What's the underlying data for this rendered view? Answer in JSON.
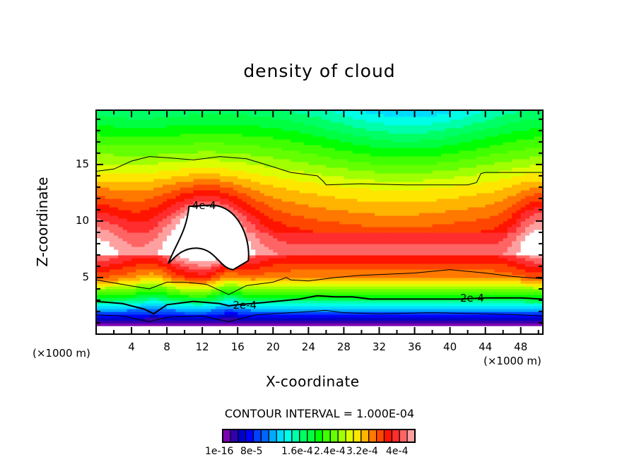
{
  "chart_data": {
    "type": "heatmap",
    "subtype": "filled-contour",
    "title": "density of cloud",
    "xlabel": "X-coordinate",
    "ylabel": "Z-coordinate",
    "x_unit_label": "(×1000 m)",
    "y_unit_label": "(×1000 m)",
    "xlim": [
      0,
      50.5
    ],
    "ylim": [
      0,
      19.8
    ],
    "x_ticks": [
      4,
      8,
      12,
      16,
      20,
      24,
      28,
      32,
      36,
      40,
      44,
      48
    ],
    "x_tick_labels": [
      "4",
      "8",
      "12",
      "16",
      "20",
      "24",
      "28",
      "32",
      "36",
      "40",
      "44",
      "48"
    ],
    "y_ticks": [
      5,
      10,
      15
    ],
    "y_tick_labels": [
      "5",
      "10",
      "15"
    ],
    "contour_interval_text": "CONTOUR INTERVAL = 1.000E-04",
    "contour_labels": [
      {
        "text": "4e-4",
        "x": 12.2,
        "z": 11.3
      },
      {
        "text": "2e-4",
        "x": 16.8,
        "z": 2.5
      },
      {
        "text": "2e-4",
        "x": 42.5,
        "z": 3.1
      }
    ],
    "colorbar": {
      "colors": [
        "#7b00b0",
        "#3000b0",
        "#0000c8",
        "#0000ff",
        "#0040ff",
        "#0064ff",
        "#00aaff",
        "#00dcff",
        "#00ffe6",
        "#00ffaa",
        "#00ff64",
        "#00ff40",
        "#00ff00",
        "#40ff00",
        "#64ff00",
        "#a0ff00",
        "#dcff00",
        "#ffe600",
        "#ffb400",
        "#ff7800",
        "#ff4600",
        "#ff1400",
        "#ff2d2d",
        "#ff6464",
        "#ffa0a0"
      ],
      "labels": [
        "1e-16",
        "8e-5",
        "1.6e-4",
        "2.4e-4",
        "3.2e-4",
        "4e-4"
      ],
      "min": 1e-16,
      "max": 0.0004
    }
  }
}
